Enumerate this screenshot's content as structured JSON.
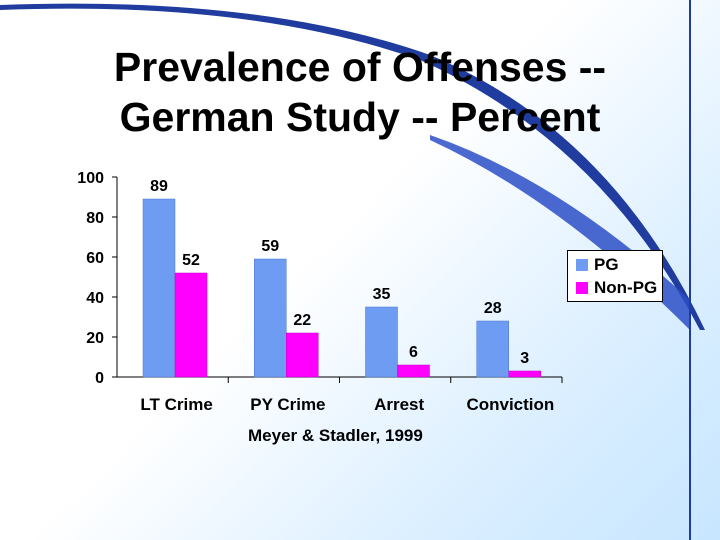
{
  "slide": {
    "title_line1": "Prevalence of Offenses --",
    "title_line2": "German Study -- Percent",
    "source": "Meyer & Stadler, 1999"
  },
  "colors": {
    "pg": "#6f9cf3",
    "non_pg": "#ff00ff",
    "accent": "#1f3c9e"
  },
  "chart_data": {
    "type": "bar",
    "title": "Prevalence of Offenses -- German Study -- Percent",
    "categories": [
      "LT Crime",
      "PY Crime",
      "Arrest",
      "Conviction"
    ],
    "series": [
      {
        "name": "PG",
        "values": [
          89,
          59,
          35,
          28
        ],
        "labels": [
          "89",
          "59",
          "35",
          "28"
        ]
      },
      {
        "name": "Non-PG",
        "values": [
          52,
          22,
          6,
          3
        ],
        "labels": [
          "52",
          "22",
          "6",
          "3"
        ]
      }
    ],
    "ylim": [
      0,
      100
    ],
    "yticks": [
      "0",
      "20",
      "40",
      "60",
      "80",
      "100"
    ],
    "legend": "right",
    "grid": false
  }
}
